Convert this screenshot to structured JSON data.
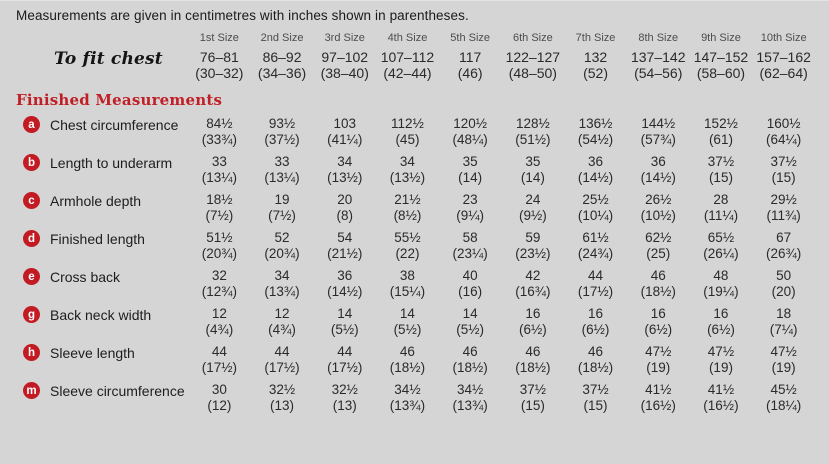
{
  "intro": "Measurements are given in centimetres with inches shown in parentheses.",
  "size_headers": [
    "1st Size",
    "2nd Size",
    "3rd Size",
    "4th Size",
    "5th Size",
    "6th Size",
    "7th Size",
    "8th Size",
    "9th Size",
    "10th Size"
  ],
  "to_fit_chest": {
    "label": "To fit chest",
    "cm": [
      "76–81",
      "86–92",
      "97–102",
      "107–112",
      "117",
      "122–127",
      "132",
      "137–142",
      "147–152",
      "157–162"
    ],
    "in": [
      "(30–32)",
      "(34–36)",
      "(38–40)",
      "(42–44)",
      "(46)",
      "(48–50)",
      "(52)",
      "(54–56)",
      "(58–60)",
      "(62–64)"
    ]
  },
  "section_heading": "Finished Measurements",
  "rows": [
    {
      "key": "a",
      "label": "Chest circumference",
      "cm": [
        "84½",
        "93½",
        "103",
        "112½",
        "120½",
        "128½",
        "136½",
        "144½",
        "152½",
        "160½"
      ],
      "in": [
        "(33¾)",
        "(37½)",
        "(41¼)",
        "(45)",
        "(48¼)",
        "(51½)",
        "(54½)",
        "(57¾)",
        "(61)",
        "(64¼)"
      ]
    },
    {
      "key": "b",
      "label": "Length to underarm",
      "cm": [
        "33",
        "33",
        "34",
        "34",
        "35",
        "35",
        "36",
        "36",
        "37½",
        "37½"
      ],
      "in": [
        "(13¼)",
        "(13¼)",
        "(13½)",
        "(13½)",
        "(14)",
        "(14)",
        "(14½)",
        "(14½)",
        "(15)",
        "(15)"
      ]
    },
    {
      "key": "c",
      "label": "Armhole depth",
      "cm": [
        "18½",
        "19",
        "20",
        "21½",
        "23",
        "24",
        "25½",
        "26½",
        "28",
        "29½"
      ],
      "in": [
        "(7½)",
        "(7½)",
        "(8)",
        "(8½)",
        "(9¼)",
        "(9½)",
        "(10¼)",
        "(10½)",
        "(11¼)",
        "(11¾)"
      ]
    },
    {
      "key": "d",
      "label": "Finished length",
      "cm": [
        "51½",
        "52",
        "54",
        "55½",
        "58",
        "59",
        "61½",
        "62½",
        "65½",
        "67"
      ],
      "in": [
        "(20¾)",
        "(20¾)",
        "(21½)",
        "(22)",
        "(23¼)",
        "(23½)",
        "(24¾)",
        "(25)",
        "(26¼)",
        "(26¾)"
      ]
    },
    {
      "key": "e",
      "label": "Cross back",
      "cm": [
        "32",
        "34",
        "36",
        "38",
        "40",
        "42",
        "44",
        "46",
        "48",
        "50"
      ],
      "in": [
        "(12¾)",
        "(13¾)",
        "(14½)",
        "(15¼)",
        "(16)",
        "(16¾)",
        "(17½)",
        "(18½)",
        "(19¼)",
        "(20)"
      ]
    },
    {
      "key": "g",
      "label": "Back neck width",
      "cm": [
        "12",
        "12",
        "14",
        "14",
        "14",
        "16",
        "16",
        "16",
        "16",
        "18"
      ],
      "in": [
        "(4¾)",
        "(4¾)",
        "(5½)",
        "(5½)",
        "(5½)",
        "(6½)",
        "(6½)",
        "(6½)",
        "(6½)",
        "(7¼)"
      ]
    },
    {
      "key": "h",
      "label": "Sleeve length",
      "cm": [
        "44",
        "44",
        "44",
        "46",
        "46",
        "46",
        "46",
        "47½",
        "47½",
        "47½"
      ],
      "in": [
        "(17½)",
        "(17½)",
        "(17½)",
        "(18½)",
        "(18½)",
        "(18½)",
        "(18½)",
        "(19)",
        "(19)",
        "(19)"
      ]
    },
    {
      "key": "m",
      "label": "Sleeve circumference",
      "cm": [
        "30",
        "32½",
        "32½",
        "34½",
        "34½",
        "37½",
        "37½",
        "41½",
        "41½",
        "45½"
      ],
      "in": [
        "(12)",
        "(13)",
        "(13)",
        "(13¾)",
        "(13¾)",
        "(15)",
        "(15)",
        "(16½)",
        "(16½)",
        "(18¼)"
      ]
    }
  ],
  "colors": {
    "background": "#d5d5d5",
    "accent_red": "#c31b23",
    "heading_red": "#c01f27",
    "text_dark": "#1a1a1a",
    "size_header_gray": "#4d4d4d"
  }
}
